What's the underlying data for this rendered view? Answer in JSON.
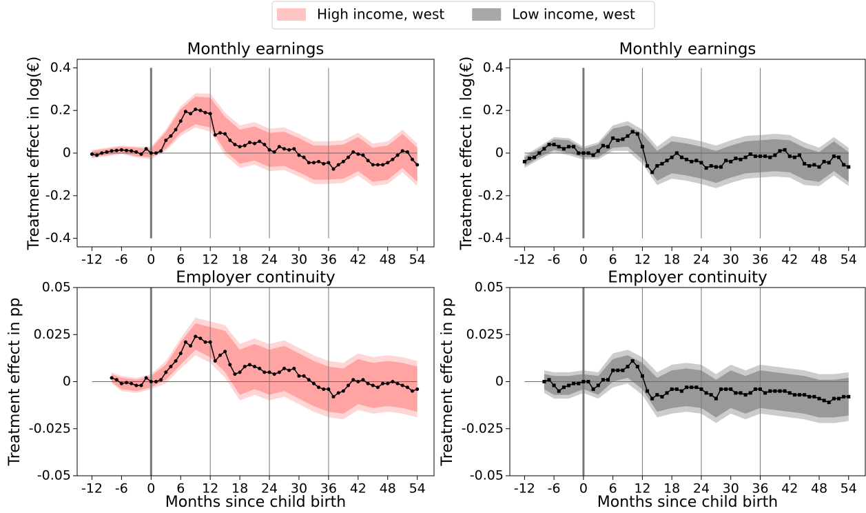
{
  "legend": [
    {
      "label": "High income, west",
      "color": "#ffc4c4"
    },
    {
      "label": "Low income, west",
      "color": "#a8a8a8"
    }
  ],
  "chart_data": [
    {
      "type": "line",
      "title": "Monthly earnings",
      "ylabel": "Treatment effect in log(€)",
      "marker": "circle",
      "line_color": "#000000",
      "x": [
        -12,
        -11,
        -10,
        -9,
        -8,
        -7,
        -6,
        -5,
        -4,
        -3,
        -2,
        -1,
        0,
        1,
        2,
        3,
        4,
        5,
        6,
        7,
        8,
        9,
        10,
        11,
        12,
        13,
        14,
        15,
        16,
        17,
        18,
        19,
        20,
        21,
        22,
        23,
        24,
        25,
        26,
        27,
        28,
        29,
        30,
        31,
        32,
        33,
        34,
        35,
        36,
        37,
        38,
        39,
        40,
        41,
        42,
        43,
        44,
        45,
        46,
        47,
        48,
        49,
        50,
        51,
        52,
        53,
        54
      ],
      "values": [
        -0.005,
        -0.01,
        0.0,
        0.005,
        0.01,
        0.012,
        0.015,
        0.012,
        0.01,
        0.005,
        -0.005,
        0.02,
        0.0,
        0.0,
        0.01,
        0.06,
        0.08,
        0.11,
        0.15,
        0.195,
        0.185,
        0.205,
        0.2,
        0.19,
        0.185,
        0.085,
        0.095,
        0.09,
        0.06,
        0.04,
        0.03,
        0.035,
        0.05,
        0.045,
        0.055,
        0.04,
        0.015,
        0.005,
        0.03,
        0.02,
        0.015,
        0.02,
        -0.01,
        -0.02,
        -0.045,
        -0.045,
        -0.04,
        -0.05,
        -0.045,
        -0.075,
        -0.055,
        -0.04,
        -0.02,
        0.005,
        -0.005,
        -0.01,
        -0.035,
        -0.055,
        -0.055,
        -0.055,
        -0.045,
        -0.03,
        -0.01,
        0.01,
        0.005,
        -0.03,
        -0.055
      ],
      "band": {
        "inner_color": "#ffa3a3",
        "outer_color": "#ffd6d6",
        "x": [
          -12,
          -9,
          -6,
          -3,
          0,
          3,
          6,
          9,
          12,
          15,
          18,
          21,
          24,
          27,
          30,
          33,
          36,
          39,
          42,
          45,
          48,
          51,
          54
        ],
        "outer_lower": [
          -0.025,
          -0.015,
          -0.005,
          -0.02,
          -0.03,
          0.01,
          0.08,
          0.12,
          0.1,
          -0.01,
          -0.07,
          -0.055,
          -0.085,
          -0.08,
          -0.11,
          -0.145,
          -0.145,
          -0.14,
          -0.105,
          -0.155,
          -0.145,
          -0.09,
          -0.155
        ],
        "outer_upper": [
          0.015,
          0.025,
          0.035,
          0.03,
          0.03,
          0.11,
          0.22,
          0.28,
          0.28,
          0.19,
          0.13,
          0.145,
          0.115,
          0.12,
          0.09,
          0.055,
          0.055,
          0.06,
          0.095,
          0.045,
          0.055,
          0.11,
          0.045
        ],
        "inner_lower": [
          -0.02,
          -0.01,
          0,
          -0.015,
          -0.02,
          0.02,
          0.095,
          0.135,
          0.12,
          0.01,
          -0.05,
          -0.035,
          -0.065,
          -0.06,
          -0.09,
          -0.125,
          -0.125,
          -0.12,
          -0.085,
          -0.135,
          -0.125,
          -0.07,
          -0.135
        ],
        "inner_upper": [
          0.01,
          0.02,
          0.03,
          0.025,
          0.02,
          0.1,
          0.205,
          0.265,
          0.26,
          0.17,
          0.11,
          0.125,
          0.095,
          0.1,
          0.07,
          0.035,
          0.035,
          0.04,
          0.075,
          0.025,
          0.035,
          0.09,
          0.025
        ]
      },
      "vlines": [
        0,
        12,
        24,
        36
      ],
      "hline": 0,
      "xlim": [
        -15,
        57.4
      ],
      "xticks": [
        -12,
        -6,
        0,
        6,
        12,
        18,
        24,
        30,
        36,
        42,
        48,
        54
      ],
      "ylim": [
        -0.44,
        0.44
      ],
      "yticks": [
        -0.4,
        -0.2,
        0,
        0.2,
        0.4
      ]
    },
    {
      "type": "line",
      "title": "Monthly earnings",
      "ylabel": "Treatment effect in log(€)",
      "marker": "square",
      "line_color": "#000000",
      "x": [
        -12,
        -11,
        -10,
        -9,
        -8,
        -7,
        -6,
        -5,
        -4,
        -3,
        -2,
        -1,
        0,
        1,
        2,
        3,
        4,
        5,
        6,
        7,
        8,
        9,
        10,
        11,
        12,
        13,
        14,
        15,
        16,
        17,
        18,
        19,
        20,
        21,
        22,
        23,
        24,
        25,
        26,
        27,
        28,
        29,
        30,
        31,
        32,
        33,
        34,
        35,
        36,
        37,
        38,
        39,
        40,
        41,
        42,
        43,
        44,
        45,
        46,
        47,
        48,
        49,
        50,
        51,
        52,
        53,
        54
      ],
      "values": [
        -0.04,
        -0.025,
        -0.02,
        0.0,
        0.02,
        0.04,
        0.04,
        0.03,
        0.02,
        0.03,
        0.03,
        0.0,
        0.0,
        0.0,
        -0.01,
        0.01,
        0.035,
        0.03,
        0.07,
        0.06,
        0.065,
        0.08,
        0.1,
        0.09,
        0.03,
        -0.06,
        -0.09,
        -0.06,
        -0.05,
        -0.035,
        -0.02,
        0.0,
        -0.02,
        -0.03,
        -0.04,
        -0.035,
        -0.045,
        -0.07,
        -0.06,
        -0.065,
        -0.065,
        -0.035,
        -0.04,
        -0.025,
        -0.03,
        -0.02,
        -0.005,
        -0.015,
        -0.015,
        -0.015,
        -0.02,
        -0.01,
        0.01,
        0.015,
        -0.015,
        -0.02,
        -0.01,
        -0.05,
        -0.06,
        -0.055,
        -0.065,
        -0.04,
        -0.045,
        -0.015,
        -0.02,
        -0.055,
        -0.065
      ],
      "band": {
        "inner_color": "#999999",
        "outer_color": "#cccccc",
        "x": [
          -12,
          -9,
          -6,
          -3,
          0,
          3,
          6,
          9,
          12,
          15,
          18,
          21,
          24,
          27,
          30,
          33,
          36,
          39,
          42,
          45,
          48,
          51,
          54
        ],
        "outer_lower": [
          -0.07,
          -0.03,
          0.005,
          -0.01,
          -0.03,
          -0.03,
          0.01,
          0.01,
          -0.05,
          -0.15,
          -0.12,
          -0.13,
          -0.145,
          -0.165,
          -0.14,
          -0.12,
          -0.115,
          -0.11,
          -0.115,
          -0.15,
          -0.155,
          -0.105,
          -0.155
        ],
        "outer_upper": [
          -0.01,
          0.03,
          0.075,
          0.07,
          0.03,
          0.05,
          0.13,
          0.15,
          0.11,
          0.03,
          0.08,
          0.07,
          0.055,
          0.035,
          0.06,
          0.08,
          0.085,
          0.09,
          0.085,
          0.05,
          0.025,
          0.075,
          0.025
        ],
        "inner_lower": [
          -0.06,
          -0.02,
          0.015,
          0,
          -0.02,
          -0.02,
          0.025,
          0.03,
          -0.03,
          -0.13,
          -0.095,
          -0.105,
          -0.12,
          -0.14,
          -0.115,
          -0.095,
          -0.09,
          -0.085,
          -0.09,
          -0.125,
          -0.135,
          -0.085,
          -0.135
        ],
        "inner_upper": [
          -0.02,
          0.02,
          0.065,
          0.06,
          0.02,
          0.04,
          0.115,
          0.13,
          0.09,
          0.01,
          0.055,
          0.045,
          0.03,
          0.01,
          0.035,
          0.055,
          0.06,
          0.065,
          0.06,
          0.025,
          0.005,
          0.055,
          0.005
        ]
      },
      "vlines": [
        0,
        12,
        24,
        36
      ],
      "hline": 0,
      "xlim": [
        -15,
        57.4
      ],
      "xticks": [
        -12,
        -6,
        0,
        6,
        12,
        18,
        24,
        30,
        36,
        42,
        48,
        54
      ],
      "ylim": [
        -0.44,
        0.44
      ],
      "yticks": [
        -0.4,
        -0.2,
        0,
        0.2,
        0.4
      ]
    },
    {
      "type": "line",
      "title": "Employer continuity",
      "ylabel": "Treatment effect in pp",
      "xlabel": "Months since child birth",
      "marker": "circle",
      "line_color": "#000000",
      "x": [
        -8,
        -7,
        -6,
        -5,
        -4,
        -3,
        -2,
        -1,
        0,
        1,
        2,
        3,
        4,
        5,
        6,
        7,
        8,
        9,
        10,
        11,
        12,
        13,
        14,
        15,
        16,
        17,
        18,
        19,
        20,
        21,
        22,
        23,
        24,
        25,
        26,
        27,
        28,
        29,
        30,
        31,
        32,
        33,
        34,
        35,
        36,
        37,
        38,
        39,
        40,
        41,
        42,
        43,
        44,
        45,
        46,
        47,
        48,
        49,
        50,
        51,
        52,
        53,
        54
      ],
      "values": [
        0.002,
        0.001,
        -0.001,
        -0.0005,
        -0.001,
        -0.002,
        -0.002,
        0.002,
        0.0,
        0.0,
        0.001,
        0.005,
        0.008,
        0.011,
        0.015,
        0.021,
        0.019,
        0.024,
        0.023,
        0.021,
        0.021,
        0.011,
        0.014,
        0.016,
        0.009,
        0.004,
        0.005,
        0.008,
        0.009,
        0.008,
        0.007,
        0.005,
        0.005,
        0.004,
        0.005,
        0.007,
        0.006,
        0.007,
        0.003,
        0.003,
        0.001,
        -0.001,
        -0.003,
        -0.004,
        -0.004,
        -0.008,
        -0.006,
        -0.005,
        -0.002,
        0.001,
        0.0,
        0.001,
        -0.001,
        -0.002,
        -0.003,
        -0.001,
        -0.001,
        0.0,
        -0.001,
        -0.002,
        -0.003,
        -0.005,
        -0.004
      ],
      "band": {
        "inner_color": "#ffa3a3",
        "outer_color": "#ffd6d6",
        "x": [
          -8,
          -6,
          -3,
          0,
          3,
          6,
          9,
          12,
          15,
          18,
          21,
          24,
          27,
          30,
          33,
          36,
          39,
          42,
          45,
          48,
          51,
          54
        ],
        "outer_lower": [
          -0.001,
          -0.005,
          -0.006,
          -0.004,
          -0.001,
          0.007,
          0.014,
          0.01,
          0.002,
          -0.01,
          -0.007,
          -0.01,
          -0.008,
          -0.012,
          -0.016,
          -0.019,
          -0.02,
          -0.015,
          -0.017,
          -0.016,
          -0.017,
          -0.019
        ],
        "outer_upper": [
          0.005,
          0.003,
          0.002,
          0.004,
          0.011,
          0.023,
          0.034,
          0.032,
          0.03,
          0.02,
          0.023,
          0.02,
          0.022,
          0.018,
          0.014,
          0.011,
          0.01,
          0.015,
          0.013,
          0.014,
          0.013,
          0.011
        ],
        "inner_lower": [
          0,
          -0.004,
          -0.005,
          -0.003,
          0.001,
          0.009,
          0.017,
          0.013,
          0.005,
          -0.007,
          -0.004,
          -0.007,
          -0.005,
          -0.009,
          -0.013,
          -0.016,
          -0.017,
          -0.012,
          -0.014,
          -0.013,
          -0.014,
          -0.016
        ],
        "inner_upper": [
          0.004,
          0.002,
          0.001,
          0.003,
          0.009,
          0.021,
          0.031,
          0.029,
          0.027,
          0.017,
          0.02,
          0.017,
          0.019,
          0.015,
          0.011,
          0.008,
          0.007,
          0.012,
          0.01,
          0.011,
          0.01,
          0.008
        ]
      },
      "vlines": [
        0,
        12,
        24,
        36
      ],
      "hline": 0,
      "xlim": [
        -15,
        57.4
      ],
      "xticks": [
        -12,
        -6,
        0,
        6,
        12,
        18,
        24,
        30,
        36,
        42,
        48,
        54
      ],
      "ylim": [
        -0.05,
        0.05
      ],
      "yticks": [
        -0.05,
        -0.025,
        0,
        0.025,
        0.05
      ]
    },
    {
      "type": "line",
      "title": "Employer continuity",
      "ylabel": "Treatment effect in pp",
      "xlabel": "Months since child birth",
      "marker": "square",
      "line_color": "#000000",
      "x": [
        -8,
        -7,
        -6,
        -5,
        -4,
        -3,
        -2,
        -1,
        0,
        1,
        2,
        3,
        4,
        5,
        6,
        7,
        8,
        9,
        10,
        11,
        12,
        13,
        14,
        15,
        16,
        17,
        18,
        19,
        20,
        21,
        22,
        23,
        24,
        25,
        26,
        27,
        28,
        29,
        30,
        31,
        32,
        33,
        34,
        35,
        36,
        37,
        38,
        39,
        40,
        41,
        42,
        43,
        44,
        45,
        46,
        47,
        48,
        49,
        50,
        51,
        52,
        53,
        54
      ],
      "values": [
        0.0,
        0.001,
        -0.002,
        -0.005,
        -0.003,
        -0.002,
        -0.001,
        -0.001,
        0.0,
        0.0,
        -0.004,
        -0.002,
        0.001,
        0.001,
        0.006,
        0.006,
        0.006,
        0.008,
        0.011,
        0.008,
        0.003,
        -0.005,
        -0.009,
        -0.007,
        -0.008,
        -0.006,
        -0.004,
        -0.004,
        -0.005,
        -0.003,
        -0.003,
        -0.003,
        -0.004,
        -0.006,
        -0.007,
        -0.009,
        -0.004,
        -0.004,
        -0.004,
        -0.006,
        -0.006,
        -0.007,
        -0.006,
        -0.004,
        -0.004,
        -0.006,
        -0.005,
        -0.005,
        -0.005,
        -0.005,
        -0.006,
        -0.007,
        -0.007,
        -0.007,
        -0.008,
        -0.008,
        -0.009,
        -0.01,
        -0.011,
        -0.009,
        -0.009,
        -0.008,
        -0.008
      ],
      "band": {
        "inner_color": "#999999",
        "outer_color": "#cccccc",
        "x": [
          -8,
          -6,
          -3,
          0,
          3,
          6,
          9,
          12,
          15,
          18,
          21,
          24,
          27,
          30,
          33,
          36,
          39,
          42,
          45,
          48,
          51,
          54
        ],
        "outer_lower": [
          -0.006,
          -0.009,
          -0.009,
          -0.006,
          -0.009,
          -0.003,
          -0.001,
          -0.007,
          -0.019,
          -0.017,
          -0.016,
          -0.017,
          -0.022,
          -0.017,
          -0.02,
          -0.017,
          -0.018,
          -0.019,
          -0.02,
          -0.022,
          -0.022,
          -0.021
        ],
        "outer_upper": [
          0.006,
          0.005,
          0.005,
          0.006,
          0.005,
          0.015,
          0.017,
          0.013,
          0.005,
          0.009,
          0.01,
          0.009,
          0.004,
          0.009,
          0.006,
          0.009,
          0.008,
          0.007,
          0.006,
          0.004,
          0.004,
          0.005
        ],
        "inner_lower": [
          -0.004,
          -0.007,
          -0.007,
          -0.004,
          -0.007,
          0,
          0.002,
          -0.004,
          -0.016,
          -0.014,
          -0.013,
          -0.014,
          -0.019,
          -0.014,
          -0.017,
          -0.014,
          -0.015,
          -0.016,
          -0.017,
          -0.019,
          -0.019,
          -0.018
        ],
        "inner_upper": [
          0.004,
          0.003,
          0.003,
          0.004,
          0.003,
          0.012,
          0.014,
          0.01,
          0.002,
          0.006,
          0.007,
          0.006,
          0.001,
          0.006,
          0.003,
          0.006,
          0.005,
          0.004,
          0.003,
          0.001,
          0.001,
          0.002
        ]
      },
      "vlines": [
        0,
        12,
        24,
        36
      ],
      "hline": 0,
      "xlim": [
        -15,
        57.4
      ],
      "xticks": [
        -12,
        -6,
        0,
        6,
        12,
        18,
        24,
        30,
        36,
        42,
        48,
        54
      ],
      "ylim": [
        -0.05,
        0.05
      ],
      "yticks": [
        -0.05,
        -0.025,
        0,
        0.025,
        0.05
      ]
    }
  ]
}
